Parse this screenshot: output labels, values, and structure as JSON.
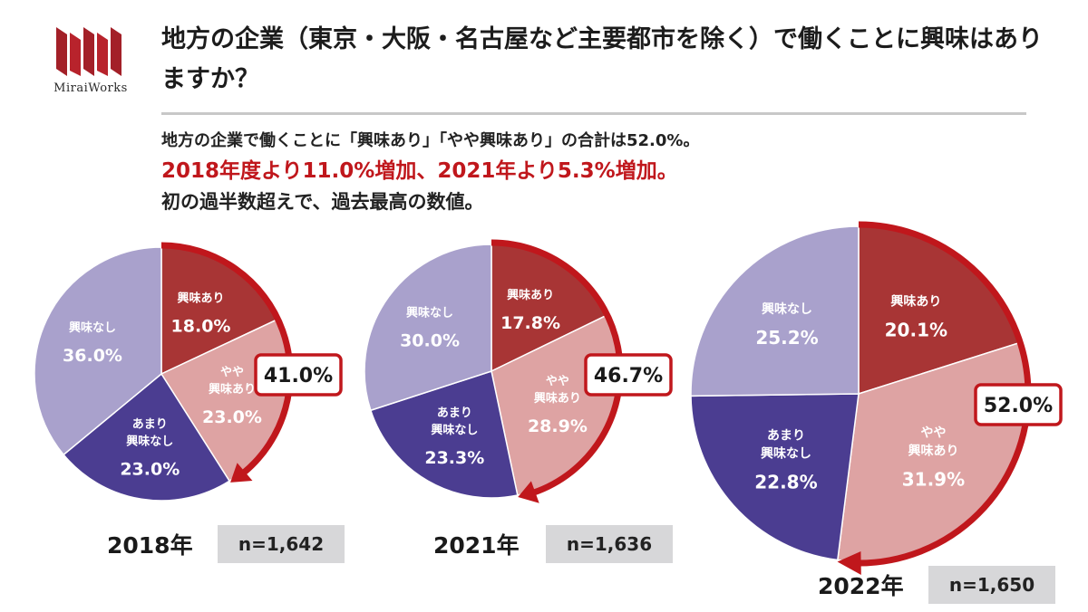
{
  "logo": {
    "text": "MiraiWorks"
  },
  "title": "地方の企業（東京・大阪・名古屋など主要都市を除く）で働くことに興味はありますか？",
  "summary": {
    "line1": "地方の企業で働くことに「興味あり」「やや興味あり」の合計は52.0%。",
    "line2": "2018年度より11.0%増加、2021年より5.3%増加。",
    "line3": "初の過半数超えで、過去最高の数値。"
  },
  "colors": {
    "interested": "#a83535",
    "somewhat": "#dea3a3",
    "not_very": "#4b3d91",
    "not": "#a9a1cc",
    "accent": "#c0171c"
  },
  "chart_data": [
    {
      "type": "pie",
      "year_label": "2018年",
      "n_label": "n=1,642",
      "combined_label": "41.0%",
      "slices": [
        {
          "lines": [
            "興味あり"
          ],
          "value": 18.0,
          "pct_label": "18.0%"
        },
        {
          "lines": [
            "やや",
            "興味あり"
          ],
          "value": 23.0,
          "pct_label": "23.0%"
        },
        {
          "lines": [
            "あまり",
            "興味なし"
          ],
          "value": 23.0,
          "pct_label": "23.0%"
        },
        {
          "lines": [
            "興味なし"
          ],
          "value": 36.0,
          "pct_label": "36.0%"
        }
      ]
    },
    {
      "type": "pie",
      "year_label": "2021年",
      "n_label": "n=1,636",
      "combined_label": "46.7%",
      "slices": [
        {
          "lines": [
            "興味あり"
          ],
          "value": 17.8,
          "pct_label": "17.8%"
        },
        {
          "lines": [
            "やや",
            "興味あり"
          ],
          "value": 28.9,
          "pct_label": "28.9%"
        },
        {
          "lines": [
            "あまり",
            "興味なし"
          ],
          "value": 23.3,
          "pct_label": "23.3%"
        },
        {
          "lines": [
            "興味なし"
          ],
          "value": 30.0,
          "pct_label": "30.0%"
        }
      ]
    },
    {
      "type": "pie",
      "year_label": "2022年",
      "n_label": "n=1,650",
      "combined_label": "52.0%",
      "slices": [
        {
          "lines": [
            "興味あり"
          ],
          "value": 20.1,
          "pct_label": "20.1%"
        },
        {
          "lines": [
            "やや",
            "興味あり"
          ],
          "value": 31.9,
          "pct_label": "31.9%"
        },
        {
          "lines": [
            "あまり",
            "興味なし"
          ],
          "value": 22.8,
          "pct_label": "22.8%"
        },
        {
          "lines": [
            "興味なし"
          ],
          "value": 25.2,
          "pct_label": "25.2%"
        }
      ]
    }
  ]
}
